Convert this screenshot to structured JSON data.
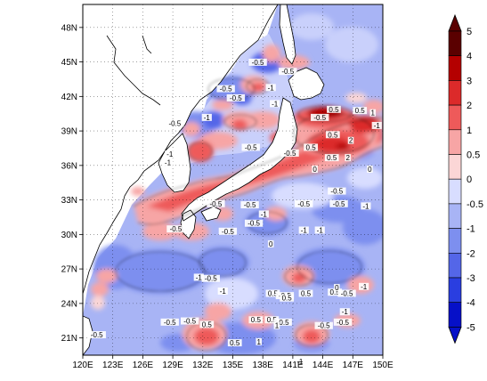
{
  "map": {
    "lon_labels": [
      "120E",
      "123E",
      "126E",
      "129E",
      "132E",
      "135E",
      "138E",
      "141E",
      "144E",
      "147E",
      "150E"
    ],
    "lat_labels": [
      "48N",
      "45N",
      "42N",
      "39N",
      "36N",
      "33N",
      "30N",
      "27N",
      "24N",
      "21N"
    ],
    "lon_range": [
      120,
      150
    ],
    "lat_range": [
      19.5,
      50
    ],
    "grid": "dotted"
  },
  "colorbar": {
    "labels": [
      "5",
      "4",
      "3",
      "2",
      "1",
      "0.5",
      "0",
      "-0.5",
      "-1",
      "-2",
      "-3",
      "-4",
      "-5"
    ],
    "colors": {
      "c5": "#5a0000",
      "c4": "#b40000",
      "c3": "#dc2a2a",
      "c2": "#ee5a5a",
      "c1": "#f7a5a5",
      "c05": "#fbd6d6",
      "cn05": "#d8ddff",
      "cn1": "#a8b4f5",
      "cn2": "#7d8fef",
      "cn3": "#5466e8",
      "cn4": "#2a3ee0",
      "cn5": "#0610c8"
    }
  },
  "contour_labels": [
    {
      "text": "-0.5",
      "lon": 137.5,
      "lat": 44.9
    },
    {
      "text": "-0.5",
      "lon": 140.5,
      "lat": 44.1
    },
    {
      "text": "-0.5",
      "lon": 134.3,
      "lat": 42.6
    },
    {
      "text": "-0.5",
      "lon": 135.3,
      "lat": 41.8
    },
    {
      "text": "-1",
      "lon": 138.8,
      "lat": 42.7
    },
    {
      "text": "-1",
      "lon": 139.2,
      "lat": 41.3
    },
    {
      "text": "-0.5",
      "lon": 129.2,
      "lat": 39.6
    },
    {
      "text": "-1",
      "lon": 132.4,
      "lat": 40.1
    },
    {
      "text": "-0.5",
      "lon": 143.7,
      "lat": 40.1
    },
    {
      "text": "0.5",
      "lon": 145.1,
      "lat": 40.8
    },
    {
      "text": "0.5",
      "lon": 147.7,
      "lat": 40.7
    },
    {
      "text": "1",
      "lon": 149.0,
      "lat": 40.5
    },
    {
      "text": "-1",
      "lon": 149.4,
      "lat": 39.4
    },
    {
      "text": "0.5",
      "lon": 145.0,
      "lat": 38.6
    },
    {
      "text": "2",
      "lon": 146.8,
      "lat": 38.1
    },
    {
      "text": "0.5",
      "lon": 142.8,
      "lat": 37.5
    },
    {
      "text": "2",
      "lon": 146.5,
      "lat": 36.6
    },
    {
      "text": "-0.5",
      "lon": 136.8,
      "lat": 37.5
    },
    {
      "text": "-1",
      "lon": 128.7,
      "lat": 36.9
    },
    {
      "text": "-1",
      "lon": 128.5,
      "lat": 36.2
    },
    {
      "text": "-0.5",
      "lon": 140.7,
      "lat": 37.0
    },
    {
      "text": "0.5",
      "lon": 144.9,
      "lat": 36.6
    },
    {
      "text": "0",
      "lon": 143.2,
      "lat": 35.6
    },
    {
      "text": "0",
      "lon": 148.7,
      "lat": 35.6
    },
    {
      "text": "-0.5",
      "lon": 145.4,
      "lat": 33.7
    },
    {
      "text": "-0.5",
      "lon": 133.3,
      "lat": 32.6
    },
    {
      "text": "-0.5",
      "lon": 136.7,
      "lat": 32.5
    },
    {
      "text": "-0.5",
      "lon": 142.1,
      "lat": 32.6
    },
    {
      "text": "-0.5",
      "lon": 145.6,
      "lat": 32.6
    },
    {
      "text": "-1",
      "lon": 148.3,
      "lat": 32.4
    },
    {
      "text": "-1",
      "lon": 138.1,
      "lat": 31.7
    },
    {
      "text": "-0.5",
      "lon": 137.1,
      "lat": 30.9
    },
    {
      "text": "-0.5",
      "lon": 129.3,
      "lat": 30.4
    },
    {
      "text": "-0.5",
      "lon": 134.5,
      "lat": 30.2
    },
    {
      "text": "-1",
      "lon": 142.1,
      "lat": 30.3
    },
    {
      "text": "-1",
      "lon": 143.7,
      "lat": 30.3
    },
    {
      "text": "0",
      "lon": 138.8,
      "lat": 29.1
    },
    {
      "text": "-1",
      "lon": 131.6,
      "lat": 26.2
    },
    {
      "text": "-0.5",
      "lon": 132.8,
      "lat": 26.1
    },
    {
      "text": "0.5",
      "lon": 139.0,
      "lat": 24.8
    },
    {
      "text": "-0.5",
      "lon": 140.2,
      "lat": 24.6
    },
    {
      "text": "0.5",
      "lon": 142.3,
      "lat": 24.8
    },
    {
      "text": "0.5",
      "lon": 140.4,
      "lat": 24.4
    },
    {
      "text": "0.5",
      "lon": 145.2,
      "lat": 24.9
    },
    {
      "text": "-0.5",
      "lon": 146.4,
      "lat": 24.8
    },
    {
      "text": "0",
      "lon": 145.4,
      "lat": 25.3
    },
    {
      "text": "-1",
      "lon": 148.1,
      "lat": 25.4
    },
    {
      "text": "-1",
      "lon": 134.0,
      "lat": 25.0
    },
    {
      "text": "-1",
      "lon": 146.2,
      "lat": 23.2
    },
    {
      "text": "-0.5",
      "lon": 128.7,
      "lat": 22.3
    },
    {
      "text": "-0.5",
      "lon": 130.7,
      "lat": 22.4
    },
    {
      "text": "0.5",
      "lon": 132.4,
      "lat": 22.1
    },
    {
      "text": "0.5",
      "lon": 137.3,
      "lat": 22.5
    },
    {
      "text": "0.5",
      "lon": 138.9,
      "lat": 22.5
    },
    {
      "text": "-0.5",
      "lon": 140.0,
      "lat": 22.3
    },
    {
      "text": "1",
      "lon": 139.4,
      "lat": 22.0
    },
    {
      "text": "-0.5",
      "lon": 144.1,
      "lat": 22.0
    },
    {
      "text": "-0.5",
      "lon": 146.0,
      "lat": 22.3
    },
    {
      "text": "-0.5",
      "lon": 121.4,
      "lat": 21.2
    },
    {
      "text": "0.5",
      "lon": 135.2,
      "lat": 20.5
    },
    {
      "text": "1",
      "lon": 137.6,
      "lat": 20.6
    },
    {
      "text": "-1",
      "lon": 141.7,
      "lat": 18.9
    }
  ]
}
